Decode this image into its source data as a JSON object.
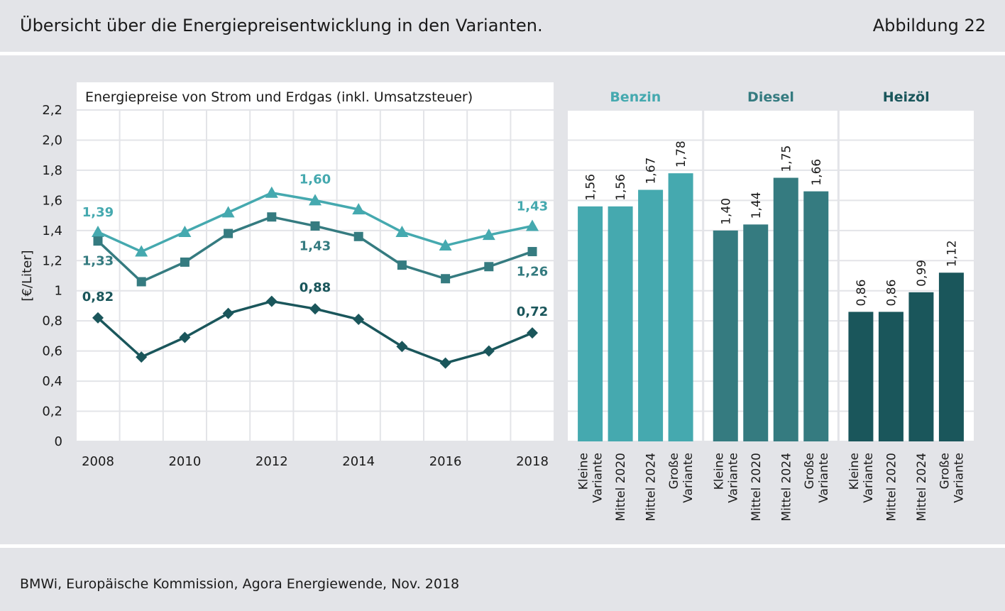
{
  "header": {
    "title": "Übersicht über die Energiepreisentwicklung in den Varianten.",
    "figure_label": "Abbildung 22"
  },
  "footer": {
    "source": "BMWi, Europäische Kommission, Agora Energiewende, Nov. 2018"
  },
  "colors": {
    "benzin": "#45a9af",
    "diesel": "#357b80",
    "heizoel": "#1a565b",
    "background": "#e3e4e8",
    "grid": "#e3e4e8"
  },
  "chart_data": [
    {
      "type": "line",
      "title": "Energiepreise von Strom und Erdgas (inkl. Umsatzsteuer)",
      "ylabel": "[€/Liter]",
      "ylim": [
        0,
        2.2
      ],
      "yticks": [
        "0",
        "0,2",
        "0,4",
        "0,6",
        "0,8",
        "1",
        "1,2",
        "1,4",
        "1,6",
        "1,8",
        "2,0",
        "2,2"
      ],
      "x": [
        2008,
        2009,
        2010,
        2011,
        2012,
        2013,
        2014,
        2015,
        2016,
        2017,
        2018
      ],
      "xticks": [
        "2008",
        "2010",
        "2012",
        "2014",
        "2016",
        "2018"
      ],
      "grid": true,
      "series": [
        {
          "key": "benzin",
          "marker": "triangle",
          "values": [
            1.39,
            1.26,
            1.39,
            1.52,
            1.65,
            1.6,
            1.54,
            1.39,
            1.3,
            1.37,
            1.43
          ],
          "labels": [
            {
              "i": 0,
              "text": "1,39"
            },
            {
              "i": 5,
              "text": "1,60"
            },
            {
              "i": 10,
              "text": "1,43"
            }
          ]
        },
        {
          "key": "diesel",
          "marker": "square",
          "values": [
            1.33,
            1.06,
            1.19,
            1.38,
            1.49,
            1.43,
            1.36,
            1.17,
            1.08,
            1.16,
            1.26
          ],
          "labels": [
            {
              "i": 0,
              "text": "1,33"
            },
            {
              "i": 5,
              "text": "1,43"
            },
            {
              "i": 10,
              "text": "1,26"
            }
          ]
        },
        {
          "key": "heizoel",
          "marker": "diamond",
          "values": [
            0.82,
            0.56,
            0.69,
            0.85,
            0.93,
            0.88,
            0.81,
            0.63,
            0.52,
            0.6,
            0.72
          ],
          "labels": [
            {
              "i": 0,
              "text": "0,82"
            },
            {
              "i": 5,
              "text": "0,88"
            },
            {
              "i": 10,
              "text": "0,72"
            }
          ]
        }
      ]
    },
    {
      "type": "bar",
      "ylim": [
        0,
        2.2
      ],
      "grid": true,
      "groups": [
        {
          "key": "benzin",
          "name": "Benzin",
          "values": [
            1.56,
            1.56,
            1.67,
            1.78
          ],
          "value_labels": [
            "1,56",
            "1,56",
            "1,67",
            "1,78"
          ]
        },
        {
          "key": "diesel",
          "name": "Diesel",
          "values": [
            1.4,
            1.44,
            1.75,
            1.66
          ],
          "value_labels": [
            "1,40",
            "1,44",
            "1,75",
            "1,66"
          ]
        },
        {
          "key": "heizoel",
          "name": "Heizöl",
          "values": [
            0.86,
            0.86,
            0.99,
            1.12
          ],
          "value_labels": [
            "0,86",
            "0,86",
            "0,99",
            "1,12"
          ]
        }
      ],
      "categories": [
        [
          "Kleine",
          "Variante"
        ],
        [
          "Mittel 2020"
        ],
        [
          "Mittel 2024"
        ],
        [
          "Große",
          "Variante"
        ]
      ]
    }
  ]
}
